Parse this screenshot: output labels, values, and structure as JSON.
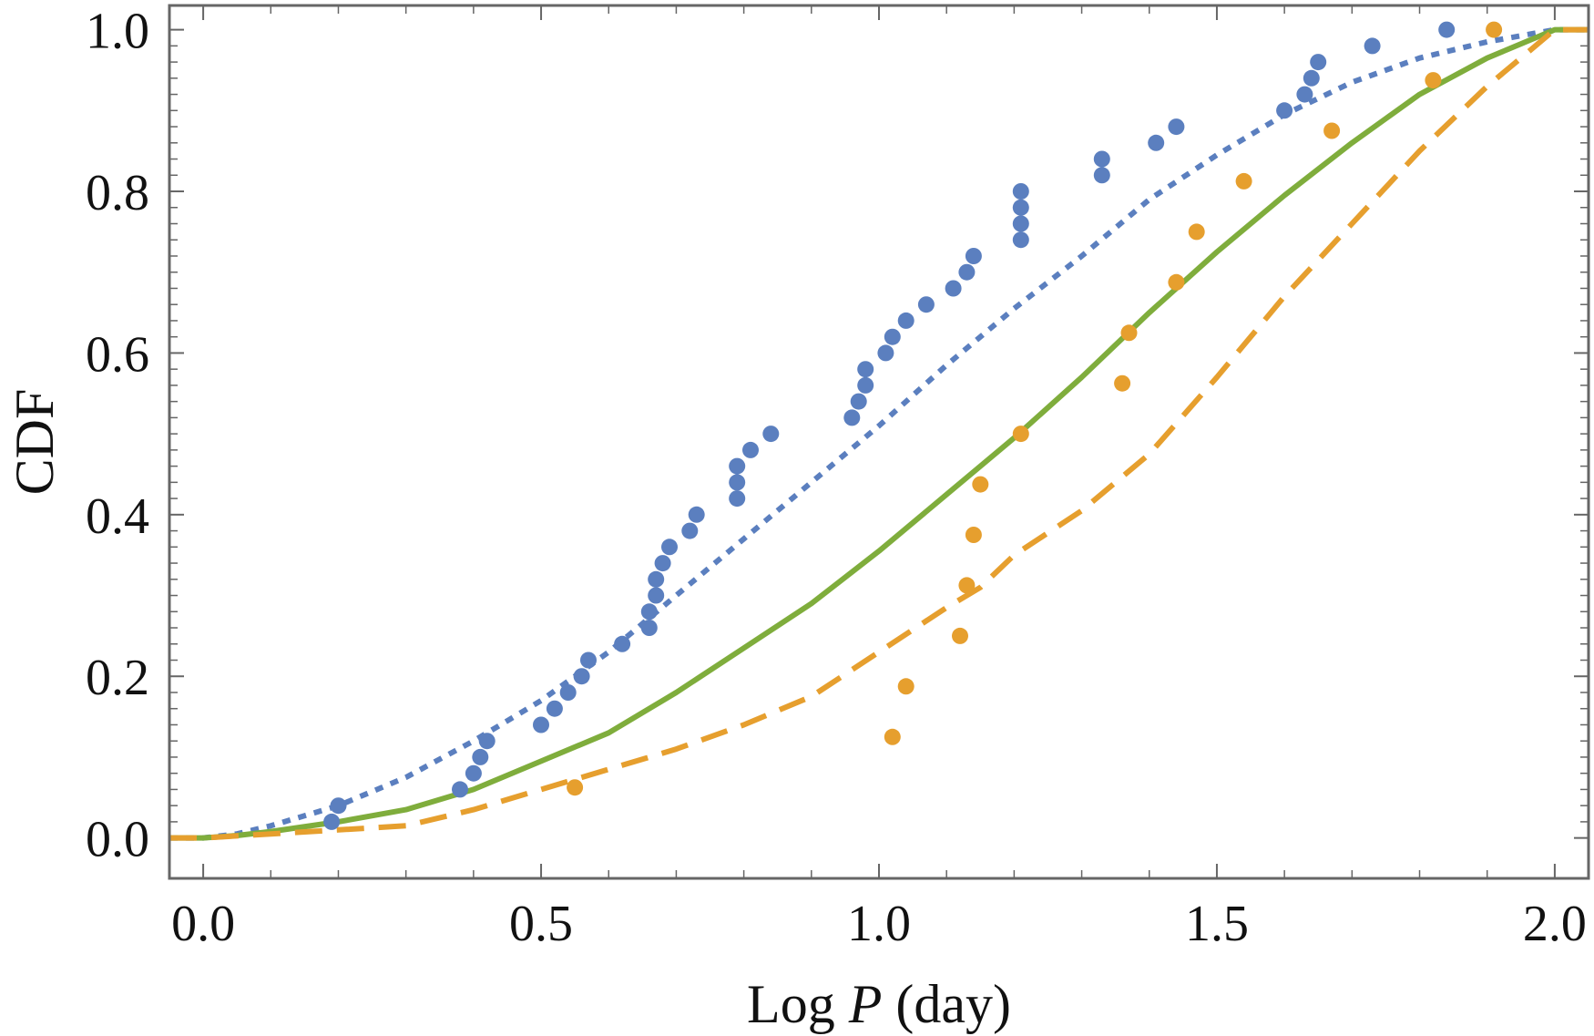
{
  "chart_data": {
    "type": "scatter",
    "title": "",
    "xlabel": "Log P (day)",
    "xlabel_parts": {
      "prefix": "Log ",
      "variable": "P",
      "suffix": " (day)"
    },
    "ylabel": "CDF",
    "xlim": [
      -0.05,
      2.05
    ],
    "ylim": [
      -0.05,
      1.03
    ],
    "x_ticks": [
      "0.0",
      "0.5",
      "1.0",
      "1.5",
      "2.0"
    ],
    "y_ticks": [
      "0.0",
      "0.2",
      "0.4",
      "0.6",
      "0.8",
      "1.0"
    ],
    "grid": false,
    "legend": "none",
    "series": [
      {
        "name": "blue points",
        "kind": "points",
        "color": "#5b7fbf",
        "points": [
          [
            0.19,
            0.02
          ],
          [
            0.2,
            0.04
          ],
          [
            0.38,
            0.06
          ],
          [
            0.4,
            0.08
          ],
          [
            0.41,
            0.1
          ],
          [
            0.42,
            0.12
          ],
          [
            0.5,
            0.14
          ],
          [
            0.52,
            0.16
          ],
          [
            0.54,
            0.18
          ],
          [
            0.56,
            0.2
          ],
          [
            0.57,
            0.22
          ],
          [
            0.62,
            0.24
          ],
          [
            0.66,
            0.26
          ],
          [
            0.66,
            0.28
          ],
          [
            0.67,
            0.3
          ],
          [
            0.67,
            0.32
          ],
          [
            0.68,
            0.34
          ],
          [
            0.69,
            0.36
          ],
          [
            0.72,
            0.38
          ],
          [
            0.73,
            0.4
          ],
          [
            0.79,
            0.42
          ],
          [
            0.79,
            0.44
          ],
          [
            0.79,
            0.46
          ],
          [
            0.81,
            0.48
          ],
          [
            0.84,
            0.5
          ],
          [
            0.96,
            0.52
          ],
          [
            0.97,
            0.54
          ],
          [
            0.98,
            0.56
          ],
          [
            0.98,
            0.58
          ],
          [
            1.01,
            0.6
          ],
          [
            1.02,
            0.62
          ],
          [
            1.04,
            0.64
          ],
          [
            1.07,
            0.66
          ],
          [
            1.11,
            0.68
          ],
          [
            1.13,
            0.7
          ],
          [
            1.14,
            0.72
          ],
          [
            1.21,
            0.74
          ],
          [
            1.21,
            0.76
          ],
          [
            1.21,
            0.78
          ],
          [
            1.21,
            0.8
          ],
          [
            1.33,
            0.82
          ],
          [
            1.33,
            0.84
          ],
          [
            1.41,
            0.86
          ],
          [
            1.44,
            0.88
          ],
          [
            1.6,
            0.9
          ],
          [
            1.63,
            0.92
          ],
          [
            1.64,
            0.94
          ],
          [
            1.65,
            0.96
          ],
          [
            1.73,
            0.98
          ],
          [
            1.84,
            1.0
          ]
        ]
      },
      {
        "name": "orange points",
        "kind": "points",
        "color": "#e69f2e",
        "points": [
          [
            0.55,
            0.0625
          ],
          [
            1.02,
            0.125
          ],
          [
            1.04,
            0.1875
          ],
          [
            1.12,
            0.25
          ],
          [
            1.13,
            0.3125
          ],
          [
            1.14,
            0.375
          ],
          [
            1.15,
            0.4375
          ],
          [
            1.21,
            0.5
          ],
          [
            1.36,
            0.5625
          ],
          [
            1.37,
            0.625
          ],
          [
            1.44,
            0.6875
          ],
          [
            1.47,
            0.75
          ],
          [
            1.54,
            0.8125
          ],
          [
            1.67,
            0.875
          ],
          [
            1.82,
            0.9375
          ],
          [
            1.91,
            1.0
          ]
        ]
      },
      {
        "name": "blue dotted curve",
        "kind": "line",
        "style": "dotted",
        "color": "#5b7fbf",
        "points": [
          [
            -0.05,
            0.0
          ],
          [
            0.0,
            0.0
          ],
          [
            0.05,
            0.005
          ],
          [
            0.1,
            0.015
          ],
          [
            0.2,
            0.04
          ],
          [
            0.3,
            0.075
          ],
          [
            0.4,
            0.12
          ],
          [
            0.5,
            0.17
          ],
          [
            0.6,
            0.23
          ],
          [
            0.7,
            0.3
          ],
          [
            0.8,
            0.37
          ],
          [
            0.9,
            0.44
          ],
          [
            1.0,
            0.51
          ],
          [
            1.1,
            0.585
          ],
          [
            1.2,
            0.655
          ],
          [
            1.3,
            0.72
          ],
          [
            1.4,
            0.79
          ],
          [
            1.5,
            0.845
          ],
          [
            1.6,
            0.895
          ],
          [
            1.7,
            0.935
          ],
          [
            1.8,
            0.965
          ],
          [
            1.9,
            0.985
          ],
          [
            2.0,
            1.0
          ],
          [
            2.05,
            1.0
          ]
        ]
      },
      {
        "name": "green solid curve",
        "kind": "line",
        "style": "solid",
        "color": "#7fad3c",
        "points": [
          [
            -0.05,
            0.0
          ],
          [
            0.0,
            0.0
          ],
          [
            0.05,
            0.003
          ],
          [
            0.1,
            0.008
          ],
          [
            0.2,
            0.02
          ],
          [
            0.3,
            0.035
          ],
          [
            0.4,
            0.06
          ],
          [
            0.5,
            0.095
          ],
          [
            0.6,
            0.13
          ],
          [
            0.7,
            0.18
          ],
          [
            0.8,
            0.235
          ],
          [
            0.9,
            0.29
          ],
          [
            1.0,
            0.355
          ],
          [
            1.1,
            0.425
          ],
          [
            1.2,
            0.495
          ],
          [
            1.3,
            0.57
          ],
          [
            1.4,
            0.65
          ],
          [
            1.5,
            0.725
          ],
          [
            1.6,
            0.795
          ],
          [
            1.7,
            0.86
          ],
          [
            1.8,
            0.92
          ],
          [
            1.9,
            0.965
          ],
          [
            2.0,
            1.0
          ],
          [
            2.05,
            1.0
          ]
        ]
      },
      {
        "name": "orange dashed curve",
        "kind": "line",
        "style": "dashed",
        "color": "#e69f2e",
        "points": [
          [
            -0.05,
            0.0
          ],
          [
            0.0,
            0.0
          ],
          [
            0.1,
            0.005
          ],
          [
            0.2,
            0.01
          ],
          [
            0.3,
            0.015
          ],
          [
            0.4,
            0.035
          ],
          [
            0.5,
            0.06
          ],
          [
            0.6,
            0.085
          ],
          [
            0.7,
            0.11
          ],
          [
            0.8,
            0.14
          ],
          [
            0.9,
            0.175
          ],
          [
            1.0,
            0.23
          ],
          [
            1.1,
            0.285
          ],
          [
            1.15,
            0.31
          ],
          [
            1.2,
            0.35
          ],
          [
            1.3,
            0.405
          ],
          [
            1.4,
            0.475
          ],
          [
            1.5,
            0.57
          ],
          [
            1.6,
            0.67
          ],
          [
            1.7,
            0.76
          ],
          [
            1.8,
            0.85
          ],
          [
            1.9,
            0.93
          ],
          [
            2.0,
            1.0
          ],
          [
            2.05,
            1.0
          ]
        ]
      }
    ]
  }
}
